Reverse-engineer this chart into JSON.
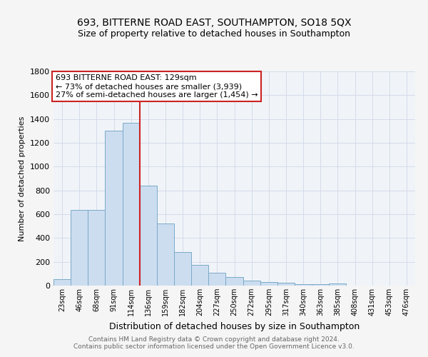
{
  "title1": "693, BITTERNE ROAD EAST, SOUTHAMPTON, SO18 5QX",
  "title2": "Size of property relative to detached houses in Southampton",
  "xlabel": "Distribution of detached houses by size in Southampton",
  "ylabel": "Number of detached properties",
  "categories": [
    "23sqm",
    "46sqm",
    "68sqm",
    "91sqm",
    "114sqm",
    "136sqm",
    "159sqm",
    "182sqm",
    "204sqm",
    "227sqm",
    "250sqm",
    "272sqm",
    "295sqm",
    "317sqm",
    "340sqm",
    "363sqm",
    "385sqm",
    "408sqm",
    "431sqm",
    "453sqm",
    "476sqm"
  ],
  "values": [
    55,
    635,
    635,
    1305,
    1370,
    840,
    525,
    285,
    175,
    110,
    70,
    40,
    30,
    25,
    15,
    10,
    20,
    0,
    0,
    0,
    0
  ],
  "bar_color": "#ccddf0",
  "bar_edge_color": "#7aaac8",
  "ylim": [
    0,
    1800
  ],
  "yticks": [
    0,
    200,
    400,
    600,
    800,
    1000,
    1200,
    1400,
    1600,
    1800
  ],
  "vline_x": 4.5,
  "vline_color": "#cc2222",
  "annotation_text": "693 BITTERNE ROAD EAST: 129sqm\n← 73% of detached houses are smaller (3,939)\n27% of semi-detached houses are larger (1,454) →",
  "annotation_box_color": "#ffffff",
  "annotation_box_edge": "#cc2222",
  "footer": "Contains HM Land Registry data © Crown copyright and database right 2024.\nContains public sector information licensed under the Open Government Licence v3.0.",
  "bg_color": "#f5f5f5",
  "plot_bg_color": "#f0f4f8",
  "grid_color": "#d0d8e8"
}
